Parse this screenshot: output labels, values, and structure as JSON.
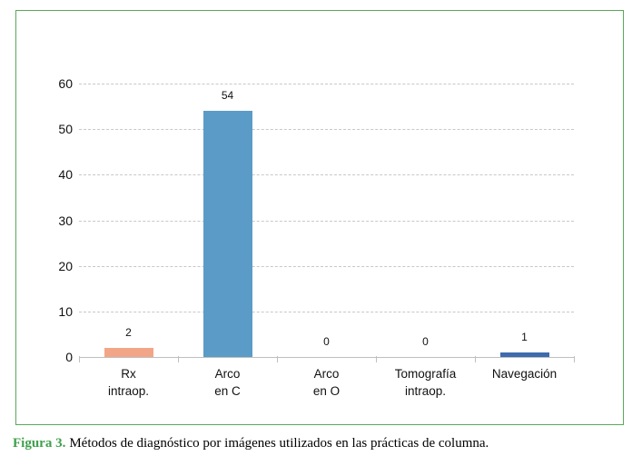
{
  "figure": {
    "caption_label": "Figura 3.",
    "caption_text": "Métodos de diagnóstico por imágenes utilizados en las prácticas de columna."
  },
  "chart_data": {
    "type": "bar",
    "title": "",
    "xlabel": "",
    "ylabel": "",
    "categories": [
      "Rx intraop.",
      "Arco en C",
      "Arco en O",
      "Tomografía intraop.",
      "Navegación"
    ],
    "category_lines": [
      [
        "Rx",
        "intraop."
      ],
      [
        "Arco",
        "en C"
      ],
      [
        "Arco",
        "en O"
      ],
      [
        "Tomografía",
        "intraop."
      ],
      [
        "Navegación"
      ]
    ],
    "values": [
      2,
      54,
      0,
      0,
      1
    ],
    "value_labels": [
      "2",
      "54",
      "0",
      "0",
      "1"
    ],
    "bar_colors": [
      "#f3a687",
      "#5b9bc8",
      "#5b9bc8",
      "#5b9bc8",
      "#3e6bae"
    ],
    "ylim": [
      0,
      60
    ],
    "yticks": [
      0,
      10,
      20,
      30,
      40,
      50,
      60
    ],
    "grid": "horizontal-dashed",
    "legend": "none"
  },
  "colors": {
    "frame_border_green": "#5aa85a",
    "caption_green": "#3fa04c",
    "axis_gray": "#bfbfbf",
    "grid_gray": "#c8c8c8"
  }
}
